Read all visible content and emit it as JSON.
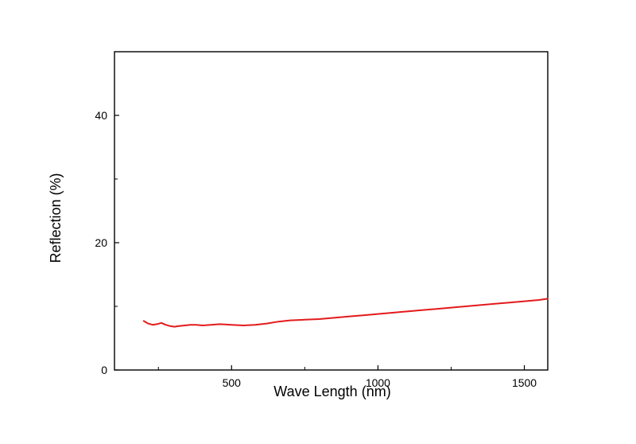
{
  "chart_data": {
    "type": "line",
    "title": "",
    "xlabel": "Wave Length (nm)",
    "ylabel": "Reflection (%)",
    "xlim": [
      100,
      1580
    ],
    "ylim": [
      0,
      50
    ],
    "x_ticks": [
      500,
      1000,
      1500
    ],
    "x_tick_labels": [
      "500",
      "1000",
      "1500"
    ],
    "x_minor_ticks": [
      250,
      750,
      1250
    ],
    "y_ticks": [
      0,
      20,
      40
    ],
    "y_tick_labels": [
      "0",
      "20",
      "40"
    ],
    "y_minor_ticks": [
      10,
      30
    ],
    "grid": false,
    "legend": "none",
    "series": [
      {
        "color": "#e31a1c",
        "x": [
          200,
          215,
          230,
          245,
          260,
          275,
          290,
          305,
          320,
          340,
          360,
          380,
          400,
          430,
          460,
          500,
          540,
          580,
          620,
          660,
          700,
          750,
          800,
          850,
          900,
          950,
          1000,
          1050,
          1100,
          1150,
          1200,
          1250,
          1300,
          1350,
          1400,
          1450,
          1500,
          1550,
          1580
        ],
        "y": [
          7.7,
          7.3,
          7.1,
          7.2,
          7.4,
          7.1,
          6.9,
          6.8,
          6.9,
          7.0,
          7.1,
          7.1,
          7.0,
          7.1,
          7.2,
          7.1,
          7.0,
          7.1,
          7.3,
          7.6,
          7.8,
          7.9,
          8.0,
          8.2,
          8.4,
          8.6,
          8.8,
          9.0,
          9.2,
          9.4,
          9.6,
          9.8,
          10.0,
          10.2,
          10.4,
          10.6,
          10.8,
          11.0,
          11.2
        ]
      }
    ]
  }
}
